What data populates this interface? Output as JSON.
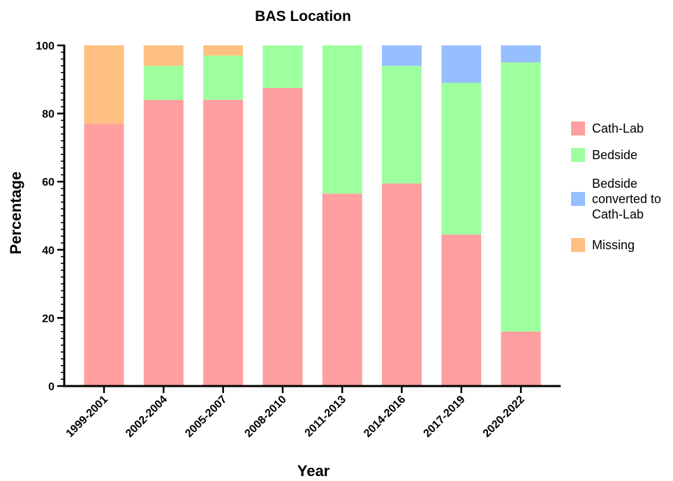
{
  "chart_data": {
    "type": "bar",
    "stacked": true,
    "title": "BAS Location",
    "xlabel": "Year",
    "ylabel": "Percentage",
    "ylim": [
      0,
      100
    ],
    "yticks": [
      "0",
      "20",
      "40",
      "60",
      "80",
      "100"
    ],
    "categories": [
      "1999-2001",
      "2002-2004",
      "2005-2007",
      "2008-2010",
      "2011-2013",
      "2014-2016",
      "2017-2019",
      "2020-2022"
    ],
    "series": [
      {
        "name": "Cath-Lab",
        "color": "#ff9f9f",
        "values": [
          77,
          84,
          84,
          87.5,
          56.5,
          59.5,
          44.5,
          16
        ]
      },
      {
        "name": "Bedside",
        "color": "#9eff9e",
        "values": [
          0,
          10,
          13,
          12.5,
          43.5,
          34.5,
          44.5,
          79
        ]
      },
      {
        "name": "Bedside converted to Cath-Lab",
        "color": "#95bfff",
        "values": [
          0,
          0,
          0,
          0,
          0,
          6,
          11,
          5
        ]
      },
      {
        "name": "Missing",
        "color": "#ffc082",
        "values": [
          23,
          6,
          3,
          0,
          0,
          0,
          0,
          0
        ]
      }
    ],
    "legend": {
      "position": "right",
      "items": [
        {
          "lines": [
            "Cath-Lab"
          ],
          "color": "#ff9f9f"
        },
        {
          "lines": [
            "Bedside"
          ],
          "color": "#9eff9e"
        },
        {
          "lines": [
            "Bedside",
            "converted to",
            "Cath-Lab"
          ],
          "color": "#95bfff"
        },
        {
          "lines": [
            "Missing"
          ],
          "color": "#ffc082"
        }
      ]
    },
    "grid": false
  }
}
